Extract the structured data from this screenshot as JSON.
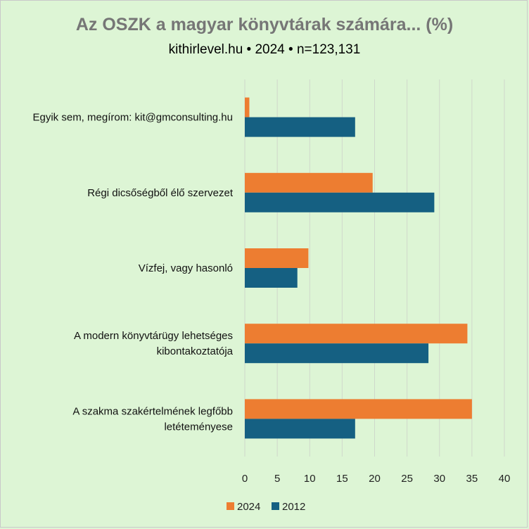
{
  "chart_data": {
    "type": "bar",
    "orientation": "horizontal",
    "title": "Az OSZK a magyar könyvtárak számára... (%)",
    "subtitle": "kithirlevel.hu • 2024 • n=123,131",
    "categories": [
      [
        "Egyik sem, megírom: kit@gmconsulting.hu"
      ],
      [
        "Régi dicsőségből élő szervezet"
      ],
      [
        "Vízfej, vagy hasonló"
      ],
      [
        "A modern könyvtárügy lehetséges",
        "kibontakoztatója"
      ],
      [
        "A szakma szakértelmének legfőbb",
        "letéteményese"
      ]
    ],
    "series": [
      {
        "name": "2024",
        "color": "#ed7d31",
        "values": [
          0.7,
          19.7,
          9.8,
          34.3,
          35.0
        ]
      },
      {
        "name": "2012",
        "color": "#156082",
        "values": [
          17.0,
          29.2,
          8.1,
          28.3,
          17.0
        ]
      }
    ],
    "xlim": [
      0,
      40
    ],
    "xticks": [
      0,
      5,
      10,
      15,
      20,
      25,
      30,
      35,
      40
    ],
    "grid": true,
    "legend_position": "bottom"
  }
}
